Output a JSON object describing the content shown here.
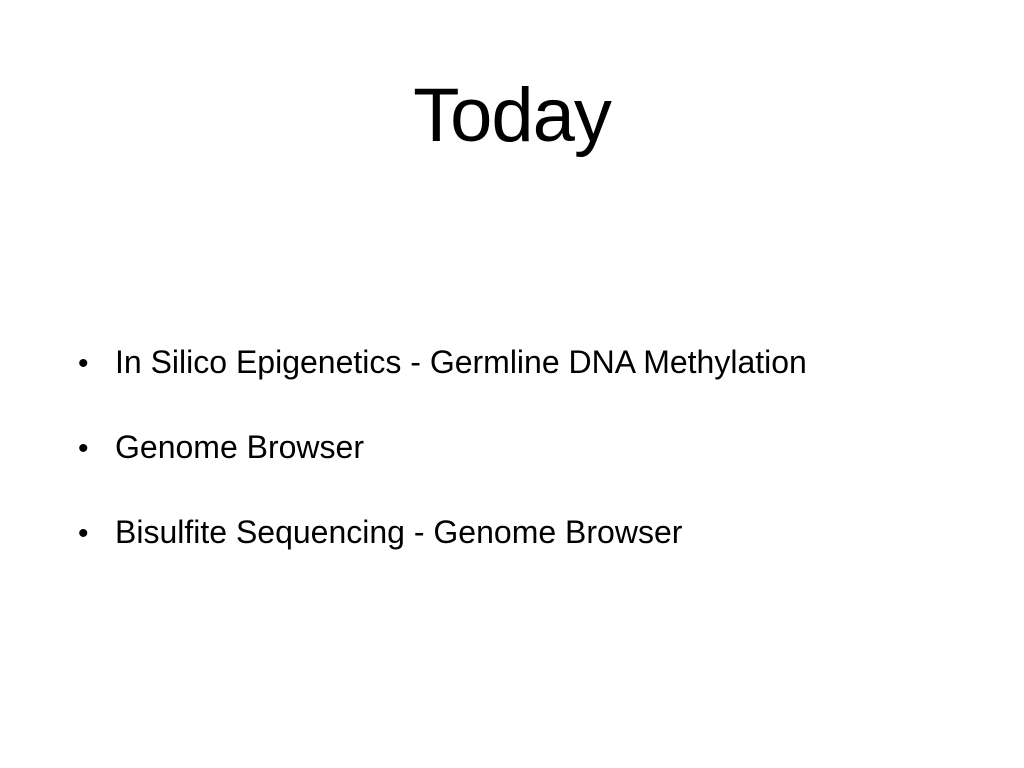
{
  "slide": {
    "title": "Today",
    "bullet_glyph": "•",
    "bullets": [
      {
        "text": "In Silico Epigenetics - Germline DNA Methylation"
      },
      {
        "text": "Genome Browser"
      },
      {
        "text": "Bisulfite Sequencing - Genome Browser"
      }
    ]
  },
  "colors": {
    "background": "#ffffff",
    "text": "#000000"
  }
}
